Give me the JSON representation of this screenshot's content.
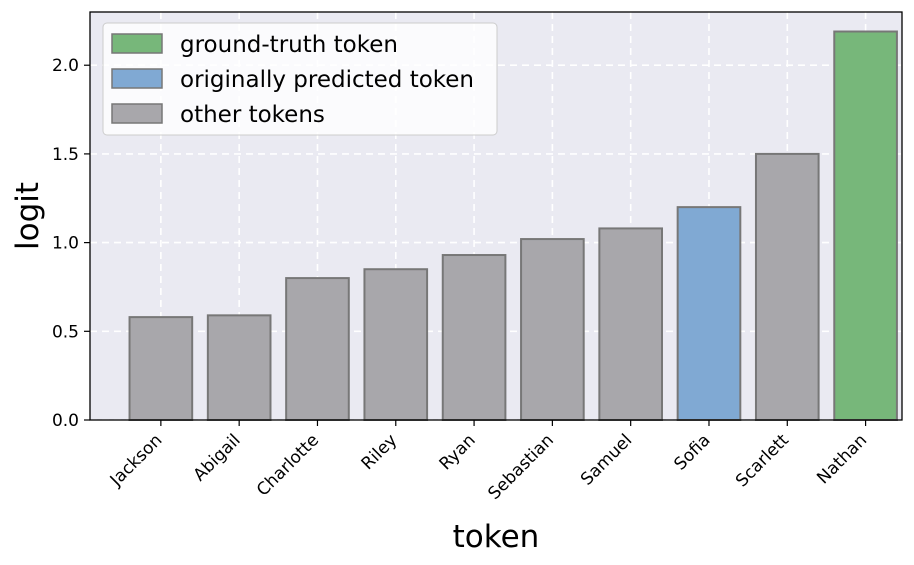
{
  "colors": {
    "background": "#eaeaf2",
    "grid": "#ffffff",
    "bar_edge": "#777777",
    "ground_truth": "#77b77a",
    "originally_predicted": "#80a9d3",
    "other": "#a8a7ab"
  },
  "chart_data": {
    "type": "bar",
    "title": "",
    "xlabel": "token",
    "ylabel": "logit",
    "ylim": [
      0,
      2.3
    ],
    "yticks": [
      "0.0",
      "0.5",
      "1.0",
      "1.5",
      "2.0"
    ],
    "grid": true,
    "legend_position": "top-left",
    "categories": [
      "Jackson",
      "Abigail",
      "Charlotte",
      "Riley",
      "Ryan",
      "Sebastian",
      "Samuel",
      "Sofia",
      "Scarlett",
      "Nathan"
    ],
    "values": [
      0.58,
      0.59,
      0.8,
      0.85,
      0.93,
      1.02,
      1.08,
      1.2,
      1.5,
      2.19
    ],
    "bar_roles": [
      "other",
      "other",
      "other",
      "other",
      "other",
      "other",
      "other",
      "originally_predicted",
      "other",
      "ground_truth"
    ],
    "legend": [
      {
        "label": "ground-truth token",
        "role": "ground_truth"
      },
      {
        "label": "originally predicted token",
        "role": "originally_predicted"
      },
      {
        "label": "other tokens",
        "role": "other"
      }
    ]
  }
}
